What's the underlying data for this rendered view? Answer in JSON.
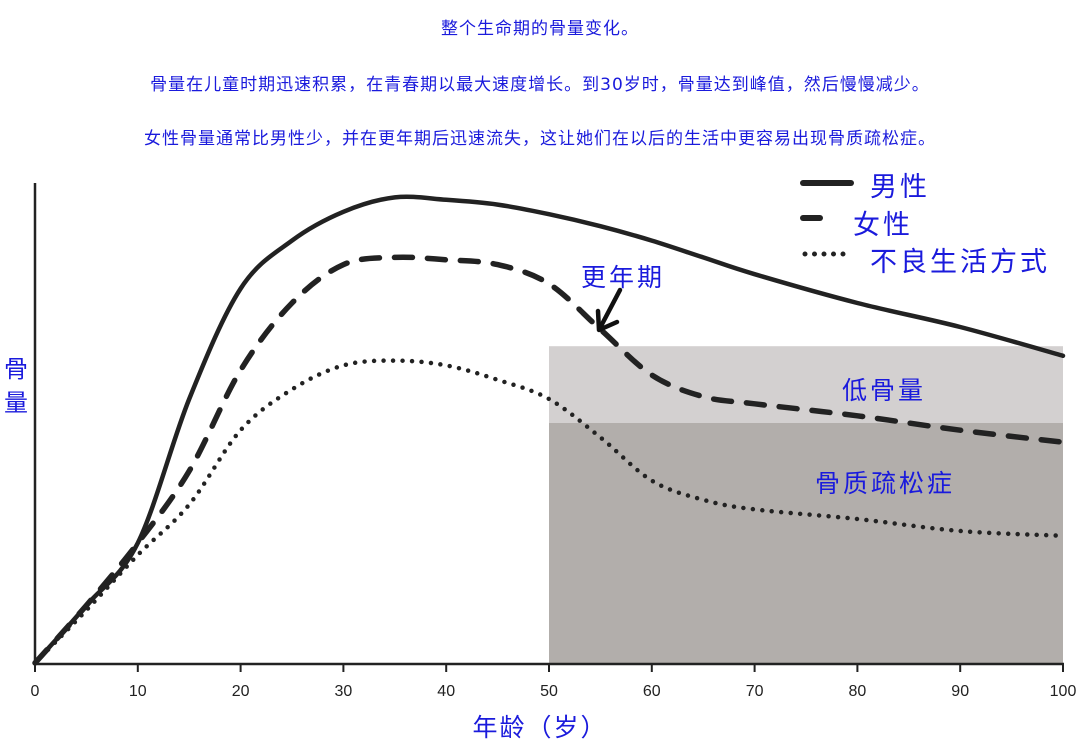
{
  "captions": {
    "title": "整个生命期的骨量变化。",
    "line1": "骨量在儿童时期迅速积累，在青春期以最大速度增长。到30岁时，骨量达到峰值，然后慢慢减少。",
    "line2": "女性骨量通常比男性少，并在更年期后迅速流失，这让她们在以后的生活中更容易出现骨质疏松症。"
  },
  "legend": {
    "male": "男性",
    "female": "女性",
    "lifestyle": "不良生活方式"
  },
  "annotations": {
    "menopause": "更年期",
    "low_bone_mass": "低骨量",
    "osteoporosis": "骨质疏松症"
  },
  "axes": {
    "xlabel": "年龄（岁）",
    "ylabel": "骨量",
    "xticks": [
      "0",
      "10",
      "20",
      "30",
      "40",
      "50",
      "60",
      "70",
      "80",
      "90",
      "100"
    ]
  },
  "colors": {
    "text_accent": "#1a1adc",
    "line": "#222222",
    "low_bone_mass_band": "#d3d0d0",
    "osteoporosis_band": "#b2aeab"
  },
  "chart_data": {
    "type": "line",
    "title": "整个生命期的骨量变化。",
    "xlabel": "年龄（岁）",
    "ylabel": "骨量",
    "xlim": [
      0,
      100
    ],
    "ylim": [
      0,
      100
    ],
    "grid": false,
    "legend_position": "top-right",
    "x": [
      0,
      5,
      10,
      15,
      20,
      25,
      30,
      35,
      40,
      45,
      50,
      55,
      60,
      65,
      70,
      80,
      90,
      100
    ],
    "series": [
      {
        "name": "男性",
        "style": "solid",
        "values": [
          0,
          12,
          25,
          55,
          78,
          88,
          94,
          97,
          96.5,
          95.5,
          93.5,
          91,
          88,
          84.5,
          81,
          75,
          70,
          64
        ]
      },
      {
        "name": "女性",
        "style": "dashed",
        "values": [
          0,
          12,
          25,
          40,
          61,
          75,
          83,
          84.5,
          84,
          83,
          79,
          69.5,
          60,
          55.5,
          54,
          51.5,
          48.5,
          46
        ]
      },
      {
        "name": "不良生活方式",
        "style": "dotted",
        "values": [
          0,
          11,
          22.5,
          33,
          48.5,
          57,
          62,
          63,
          62,
          59,
          55,
          47,
          38,
          34,
          32,
          30,
          27.5,
          26.5
        ]
      }
    ],
    "regions": [
      {
        "label": "低骨量",
        "x": [
          50,
          100
        ],
        "y": [
          50,
          66
        ]
      },
      {
        "label": "骨质疏松症",
        "x": [
          50,
          100
        ],
        "y": [
          0,
          50
        ]
      }
    ],
    "annotations_list": [
      {
        "text": "更年期",
        "x": 55,
        "y": 69,
        "arrow": true
      }
    ]
  }
}
